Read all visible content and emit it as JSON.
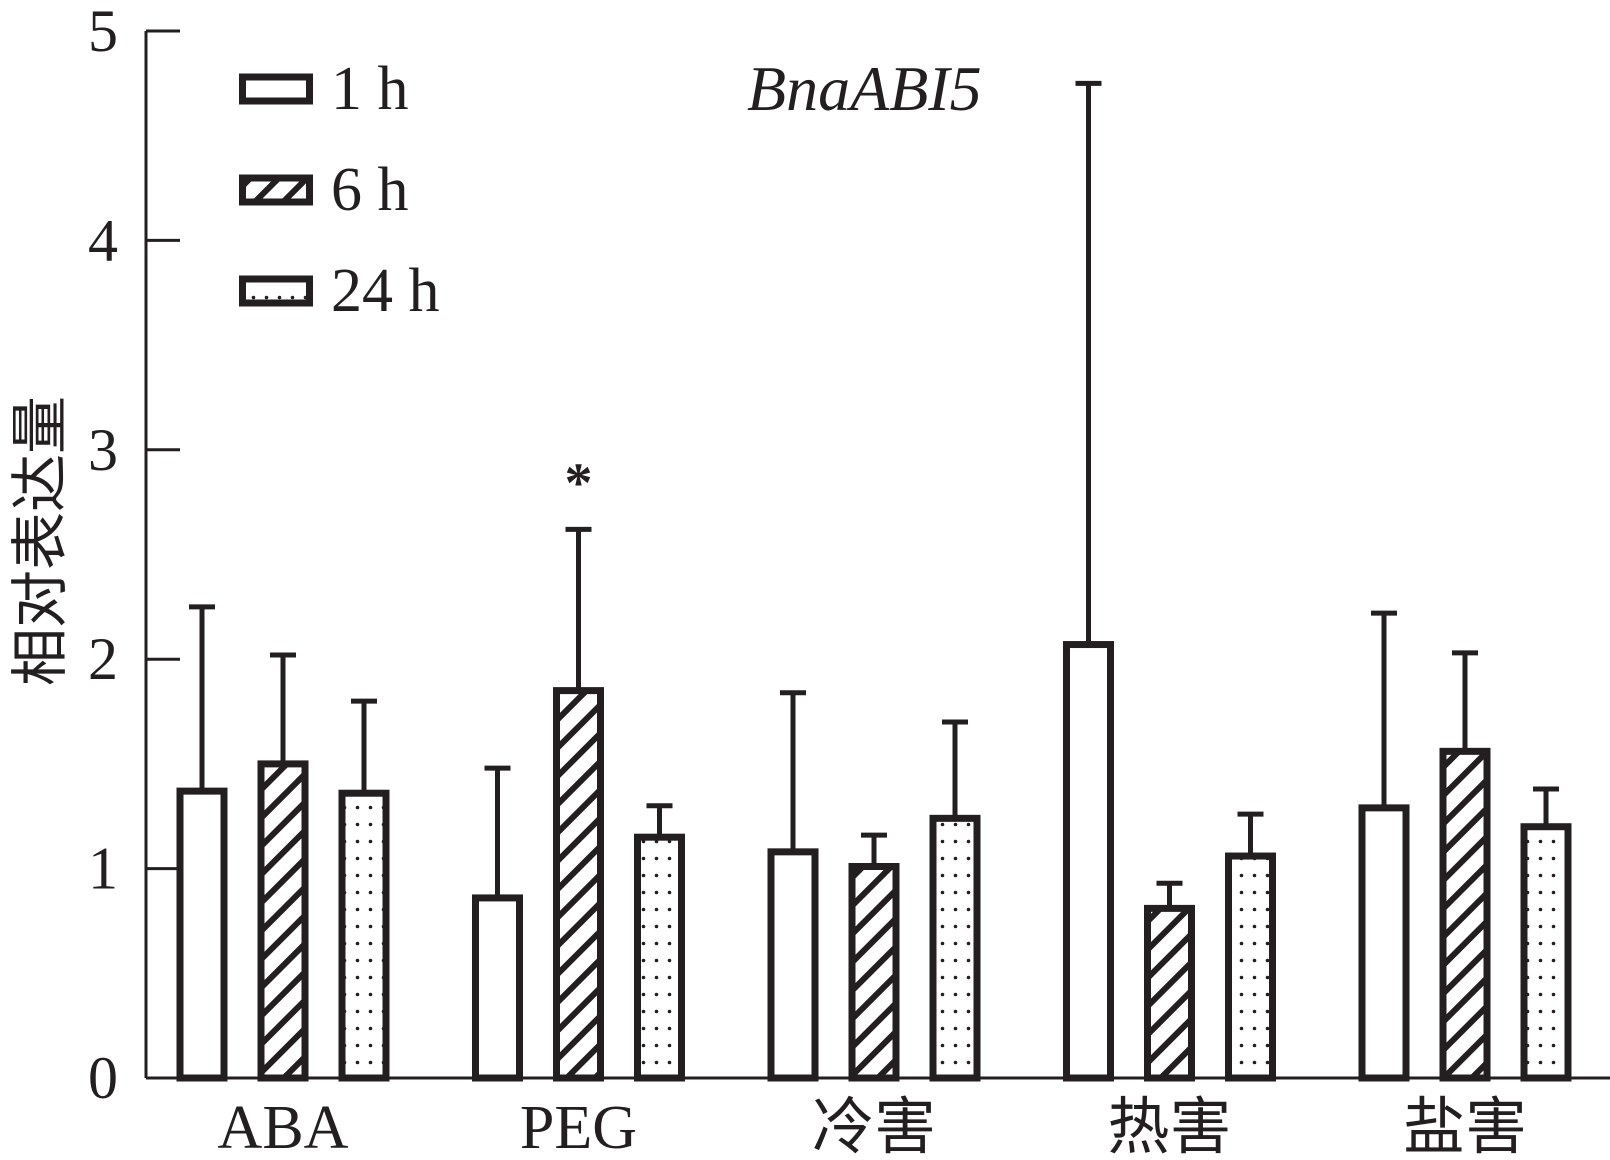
{
  "colors": {
    "ink": "#231f20",
    "background": "#ffffff"
  },
  "chart_data": {
    "type": "bar",
    "title": "BnaABI5",
    "xlabel": "",
    "ylabel": "相对表达量",
    "ylim": [
      0,
      5
    ],
    "yticks": [
      0,
      1,
      2,
      3,
      4,
      5
    ],
    "categories": [
      "ABA",
      "PEG",
      "冷害",
      "热害",
      "盐害"
    ],
    "series": [
      {
        "name": "1 h",
        "values": [
          1.37,
          0.86,
          1.08,
          2.07,
          1.29
        ],
        "errors": [
          0.88,
          0.62,
          0.76,
          2.68,
          0.93
        ]
      },
      {
        "name": "6 h",
        "values": [
          1.5,
          1.85,
          1.01,
          0.81,
          1.56
        ],
        "errors": [
          0.52,
          0.77,
          0.15,
          0.12,
          0.47
        ]
      },
      {
        "name": "24 h",
        "values": [
          1.36,
          1.15,
          1.24,
          1.06,
          1.2
        ],
        "errors": [
          0.44,
          0.15,
          0.46,
          0.2,
          0.18
        ]
      }
    ],
    "annotations": [
      {
        "text": "*",
        "category_index": 1,
        "series_index": 1
      }
    ]
  }
}
